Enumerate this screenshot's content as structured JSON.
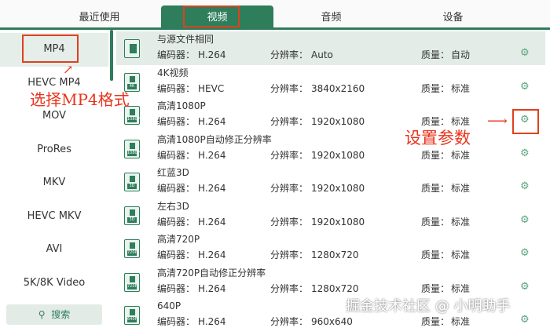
{
  "tabs": [
    "最近使用",
    "视频",
    "音频",
    "设备"
  ],
  "active_tab": 1,
  "sidebar": {
    "items": [
      "MP4",
      "HEVC MP4",
      "MOV",
      "ProRes",
      "MKV",
      "HEVC MKV",
      "AVI",
      "5K/8K Video"
    ],
    "search_label": "搜索",
    "search_icon": "search-icon"
  },
  "labels": {
    "encoder": "编码器：",
    "resolution": "分辨率：",
    "quality": "质量："
  },
  "rows": [
    {
      "name": "与源文件相同",
      "encoder": "H.264",
      "resolution": "Auto",
      "quality": "自动",
      "badge": ""
    },
    {
      "name": "4K视频",
      "encoder": "HEVC",
      "resolution": "3840x2160",
      "quality": "标准",
      "badge": "4K"
    },
    {
      "name": "高清1080P",
      "encoder": "H.264",
      "resolution": "1920x1080",
      "quality": "标准",
      "badge": "1080P"
    },
    {
      "name": "高清1080P自动修正分辨率",
      "encoder": "H.264",
      "resolution": "1920x1080",
      "quality": "标准",
      "badge": "1080P"
    },
    {
      "name": "红蓝3D",
      "encoder": "H.264",
      "resolution": "1920x1080",
      "quality": "标准",
      "badge": "3D"
    },
    {
      "name": "左右3D",
      "encoder": "H.264",
      "resolution": "1920x1080",
      "quality": "标准",
      "badge": "3D"
    },
    {
      "name": "高清720P",
      "encoder": "H.264",
      "resolution": "1280x720",
      "quality": "标准",
      "badge": "720P"
    },
    {
      "name": "高清720P自动修正分辨率",
      "encoder": "H.264",
      "resolution": "1280x720",
      "quality": "标准",
      "badge": "720P"
    },
    {
      "name": "640P",
      "encoder": "H.264",
      "resolution": "960x640",
      "quality": "标准",
      "badge": "640P"
    }
  ],
  "annotations": {
    "select_format": "选择MP4格式",
    "set_params": "设置参数"
  },
  "watermark": "掘金技术社区 @ 小明助手",
  "colors": {
    "accent": "#2e7d5b",
    "annotation": "#e8341c"
  }
}
